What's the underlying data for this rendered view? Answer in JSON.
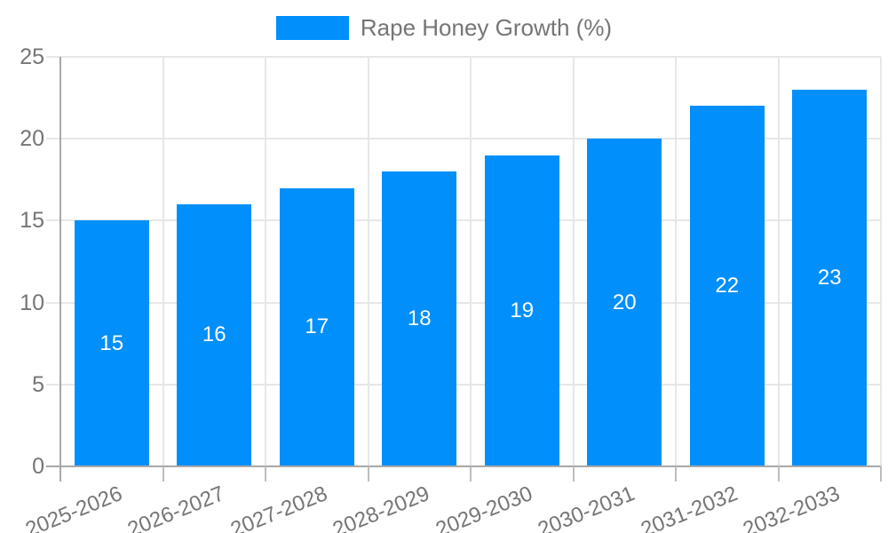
{
  "chart_data": {
    "type": "bar",
    "title": "",
    "legend": "Rape Honey Growth (%)",
    "legend_position": "top",
    "categories": [
      "2025-2026",
      "2026-2027",
      "2027-2028",
      "2028-2029",
      "2029-2030",
      "2030-2031",
      "2031-2032",
      "2032-2033"
    ],
    "series": [
      {
        "name": "Rape Honey Growth (%)",
        "values": [
          15,
          16,
          17,
          18,
          19,
          20,
          22,
          23
        ]
      }
    ],
    "values": [
      15,
      16,
      17,
      18,
      19,
      20,
      22,
      23
    ],
    "bar_labels": [
      "15",
      "16",
      "17",
      "18",
      "19",
      "20",
      "22",
      "23"
    ],
    "xlabel": "",
    "ylabel": "",
    "ylim": [
      0,
      25
    ],
    "yticks": [
      0,
      5,
      10,
      15,
      20,
      25
    ],
    "grid": true,
    "colors": {
      "bar": "#008FFB",
      "bar_label": "#FFFFFF",
      "axis_text": "#757575",
      "grid_line": "#E7E7E7",
      "axis_line": "#A8A8A8",
      "minor_tick": "#BDBDBD",
      "background": "#FFFFFF"
    }
  }
}
